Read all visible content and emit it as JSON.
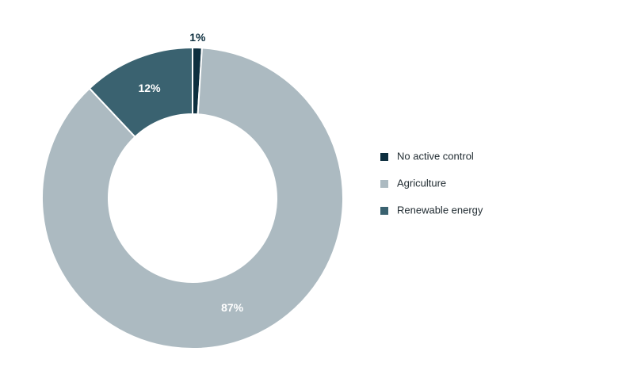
{
  "chart_data": {
    "type": "pie",
    "donut": true,
    "title": "",
    "categories": [
      "No active control",
      "Agriculture",
      "Renewable energy"
    ],
    "values": [
      1,
      87,
      12
    ],
    "labels": [
      "1%",
      "87%",
      "12%"
    ],
    "colors": [
      "#0d2f3f",
      "#acbac1",
      "#3a6270"
    ],
    "label_colors": [
      "#0d2f3f",
      "#ffffff",
      "#ffffff"
    ],
    "legend_position": "right"
  }
}
